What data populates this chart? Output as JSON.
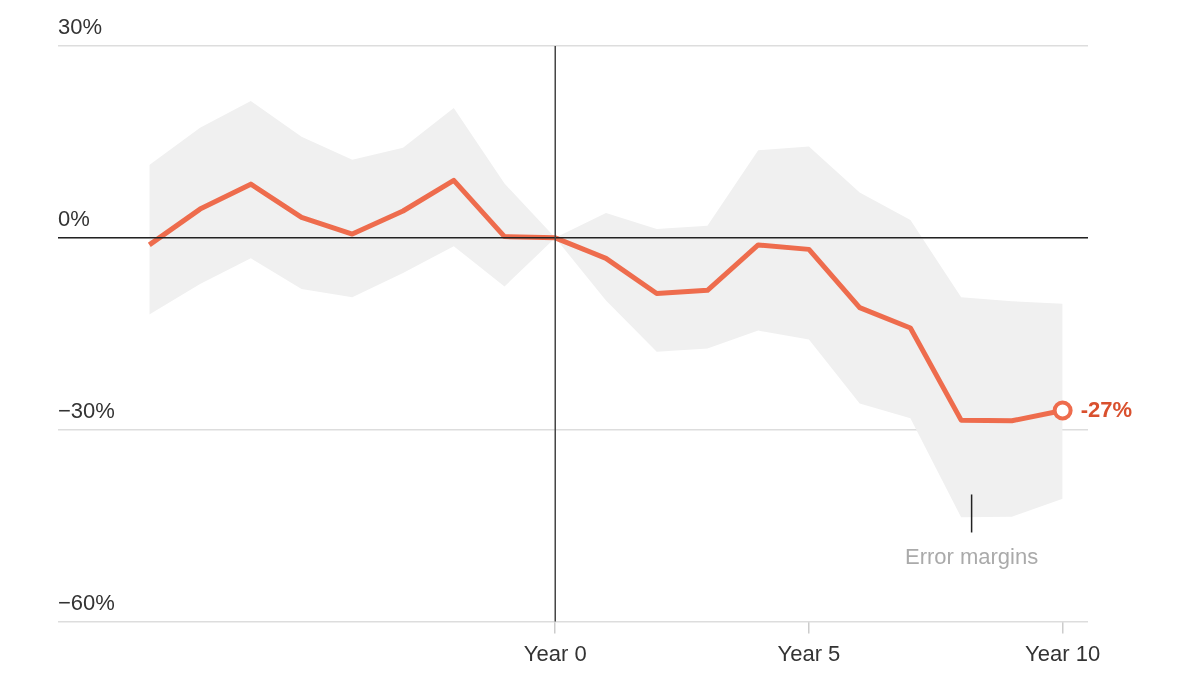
{
  "chart_data": {
    "type": "line",
    "categories": [
      null,
      null,
      null,
      null,
      null,
      null,
      null,
      null,
      "Year 0",
      null,
      null,
      null,
      null,
      "Year 5",
      null,
      null,
      null,
      null,
      "Year 10"
    ],
    "series": [
      {
        "color": "#ee6c4d",
        "values": [
          -1.1,
          4.5,
          8.4,
          3.2,
          0.6,
          4.2,
          9,
          0.2,
          0,
          -3.2,
          -8.7,
          -8.2,
          -1.1,
          -1.8,
          -10.9,
          -14.1,
          -28.5,
          -28.6,
          -27
        ],
        "lower": [
          -12,
          -7.2,
          -3.2,
          -8,
          -9.3,
          -5.5,
          -1.3,
          -7.6,
          0,
          -9.8,
          -17.8,
          -17.3,
          -14.5,
          -15.9,
          -25.9,
          -28.2,
          -43.7,
          -43.6,
          -40.8
        ],
        "upper": [
          11.4,
          17.2,
          21.4,
          15.8,
          12.2,
          14.1,
          20.3,
          8.5,
          0,
          3.9,
          1.4,
          1.9,
          13.7,
          14.3,
          7.1,
          2.8,
          -9.3,
          -9.9,
          -10.3
        ],
        "value_labels": [
          null,
          null,
          null,
          null,
          null,
          null,
          null,
          null,
          null,
          null,
          null,
          null,
          null,
          null,
          null,
          null,
          null,
          null,
          "-27%"
        ]
      }
    ],
    "ylim": [
      -60,
      30
    ],
    "yticks": [
      {
        "value": 30,
        "label": "30%"
      },
      {
        "value": 0,
        "label": "0%"
      },
      {
        "value": -30,
        "label": "−30%"
      },
      {
        "value": -60,
        "label": "−60%"
      }
    ],
    "grid": "y",
    "ref_lines": [
      {
        "axis": "y",
        "value": 0,
        "color": "#222222"
      },
      {
        "axis": "x",
        "value": "Year 0",
        "color": "#444444"
      }
    ],
    "annotations": [
      "Error margins"
    ]
  }
}
